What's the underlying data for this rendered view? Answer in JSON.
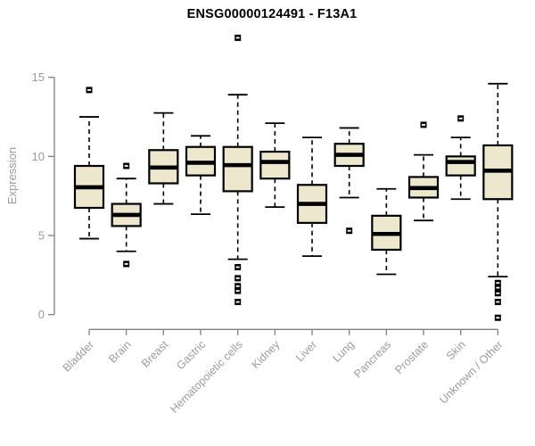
{
  "header": {
    "title": "ENSG00000124491 - F13A1"
  },
  "chart_data": {
    "type": "boxplot",
    "title": "ENSG00000124491 - F13A1",
    "ylabel": "Expression",
    "xlabel": "",
    "yticks": [
      0,
      5,
      10,
      15
    ],
    "ylim": [
      0,
      15
    ],
    "grid": false,
    "legend": "none",
    "categories": [
      "Bladder",
      "Brain",
      "Breast",
      "Gastric",
      "Hematopoietic cells",
      "Kidney",
      "Liver",
      "Lung",
      "Pancreas",
      "Prostate",
      "Skin",
      "Unknown / Other"
    ],
    "series": [
      {
        "category": "Bladder",
        "whisker_low": 4.8,
        "q1": 6.75,
        "median": 8.05,
        "q3": 9.4,
        "whisker_high": 12.5,
        "outliers": [
          14.2
        ]
      },
      {
        "category": "Brain",
        "whisker_low": 4.0,
        "q1": 5.6,
        "median": 6.3,
        "q3": 7.0,
        "whisker_high": 8.6,
        "outliers": [
          9.4,
          3.2
        ]
      },
      {
        "category": "Breast",
        "whisker_low": 7.0,
        "q1": 8.3,
        "median": 9.3,
        "q3": 10.4,
        "whisker_high": 12.75,
        "outliers": []
      },
      {
        "category": "Gastric",
        "whisker_low": 6.35,
        "q1": 8.8,
        "median": 9.6,
        "q3": 10.6,
        "whisker_high": 11.3,
        "outliers": []
      },
      {
        "category": "Hematopoietic cells",
        "whisker_low": 3.5,
        "q1": 7.8,
        "median": 9.45,
        "q3": 10.6,
        "whisker_high": 13.9,
        "outliers": [
          17.5,
          3.0,
          2.3,
          1.8,
          1.5,
          0.8
        ]
      },
      {
        "category": "Kidney",
        "whisker_low": 6.8,
        "q1": 8.6,
        "median": 9.65,
        "q3": 10.3,
        "whisker_high": 12.1,
        "outliers": []
      },
      {
        "category": "Liver",
        "whisker_low": 3.7,
        "q1": 5.8,
        "median": 7.0,
        "q3": 8.2,
        "whisker_high": 11.2,
        "outliers": []
      },
      {
        "category": "Lung",
        "whisker_low": 7.4,
        "q1": 9.4,
        "median": 10.1,
        "q3": 10.8,
        "whisker_high": 11.8,
        "outliers": [
          5.3
        ]
      },
      {
        "category": "Pancreas",
        "whisker_low": 2.55,
        "q1": 4.1,
        "median": 5.1,
        "q3": 6.25,
        "whisker_high": 7.95,
        "outliers": []
      },
      {
        "category": "Prostate",
        "whisker_low": 5.95,
        "q1": 7.4,
        "median": 8.0,
        "q3": 8.7,
        "whisker_high": 10.1,
        "outliers": [
          12.0
        ]
      },
      {
        "category": "Skin",
        "whisker_low": 7.3,
        "q1": 8.8,
        "median": 9.65,
        "q3": 10.0,
        "whisker_high": 11.2,
        "outliers": [
          12.4
        ]
      },
      {
        "category": "Unknown / Other",
        "whisker_low": 2.4,
        "q1": 7.3,
        "median": 9.1,
        "q3": 10.7,
        "whisker_high": 14.6,
        "outliers": [
          2.0,
          1.7,
          1.35,
          0.8,
          -0.2
        ]
      }
    ],
    "colors": {
      "box_fill": "#EDE8CD",
      "box_border": "#000000",
      "median": "#000000",
      "whisker": "#000000",
      "axis": "#7f7f7f",
      "tick_label": "#9b9b9b",
      "title": "#000000"
    }
  }
}
